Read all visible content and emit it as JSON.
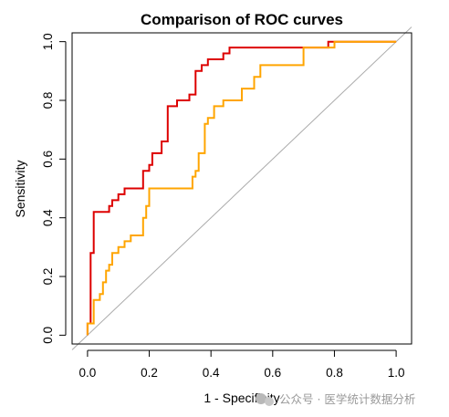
{
  "chart_data": {
    "type": "line",
    "title": "Comparison of ROC curves",
    "xlabel": "1 - Specificity",
    "ylabel": "Sensitivity",
    "xlim": [
      -0.05,
      1.05
    ],
    "ylim": [
      -0.03,
      1.03
    ],
    "xticks": [
      "0.0",
      "0.2",
      "0.4",
      "0.6",
      "0.8",
      "1.0"
    ],
    "yticks": [
      "0.0",
      "0.2",
      "0.4",
      "0.6",
      "0.8",
      "1.0"
    ],
    "grid": false,
    "legend": "none",
    "reference_line": {
      "from": [
        -0.05,
        -0.05
      ],
      "to": [
        1.05,
        1.05
      ],
      "color": "#aaaaaa"
    },
    "series": [
      {
        "color": "#dd0000",
        "x": [
          0.0,
          0.0,
          0.01,
          0.01,
          0.02,
          0.02,
          0.07,
          0.07,
          0.08,
          0.08,
          0.1,
          0.1,
          0.12,
          0.12,
          0.18,
          0.18,
          0.2,
          0.2,
          0.21,
          0.21,
          0.24,
          0.24,
          0.26,
          0.26,
          0.29,
          0.29,
          0.33,
          0.33,
          0.35,
          0.35,
          0.37,
          0.37,
          0.39,
          0.39,
          0.44,
          0.44,
          0.46,
          0.46,
          0.64,
          0.64,
          0.78,
          0.78,
          1.0
        ],
        "y": [
          0.0,
          0.04,
          0.04,
          0.28,
          0.28,
          0.42,
          0.42,
          0.44,
          0.44,
          0.46,
          0.46,
          0.48,
          0.48,
          0.5,
          0.5,
          0.56,
          0.56,
          0.58,
          0.58,
          0.62,
          0.62,
          0.66,
          0.66,
          0.78,
          0.78,
          0.8,
          0.8,
          0.82,
          0.82,
          0.9,
          0.9,
          0.92,
          0.92,
          0.94,
          0.94,
          0.96,
          0.96,
          0.98,
          0.98,
          0.98,
          0.98,
          1.0,
          1.0
        ]
      },
      {
        "color": "#ffa500",
        "x": [
          0.0,
          0.0,
          0.02,
          0.02,
          0.04,
          0.04,
          0.05,
          0.05,
          0.06,
          0.06,
          0.07,
          0.07,
          0.08,
          0.08,
          0.1,
          0.1,
          0.12,
          0.12,
          0.14,
          0.14,
          0.18,
          0.18,
          0.19,
          0.19,
          0.2,
          0.2,
          0.34,
          0.34,
          0.35,
          0.35,
          0.36,
          0.36,
          0.38,
          0.38,
          0.39,
          0.39,
          0.41,
          0.41,
          0.44,
          0.44,
          0.5,
          0.5,
          0.54,
          0.54,
          0.56,
          0.56,
          0.7,
          0.7,
          0.8,
          0.8,
          1.0
        ],
        "y": [
          0.0,
          0.04,
          0.04,
          0.12,
          0.12,
          0.14,
          0.14,
          0.18,
          0.18,
          0.22,
          0.22,
          0.24,
          0.24,
          0.28,
          0.28,
          0.3,
          0.3,
          0.32,
          0.32,
          0.34,
          0.34,
          0.4,
          0.4,
          0.44,
          0.44,
          0.5,
          0.5,
          0.54,
          0.54,
          0.56,
          0.56,
          0.62,
          0.62,
          0.72,
          0.72,
          0.74,
          0.74,
          0.78,
          0.78,
          0.8,
          0.8,
          0.84,
          0.84,
          0.88,
          0.88,
          0.92,
          0.92,
          0.98,
          0.98,
          1.0,
          1.0
        ]
      }
    ]
  },
  "watermark": {
    "text": "公众号 · 医学统计数据分析"
  }
}
